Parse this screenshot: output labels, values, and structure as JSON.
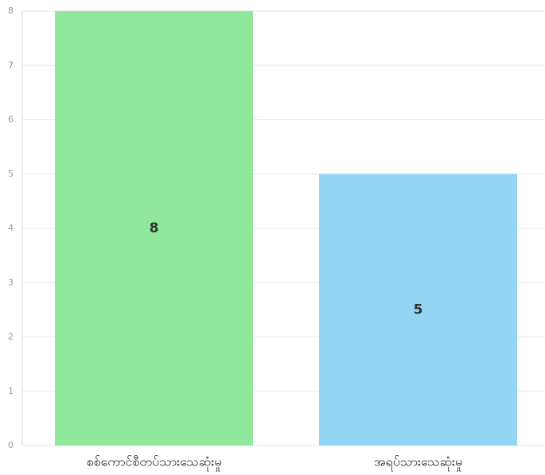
{
  "chart_data": {
    "type": "bar",
    "categories": [
      "စစ်ကောင်စီတပ်သားသေဆုံးမှု",
      "အရပ်သားသေဆုံးမှု"
    ],
    "values": [
      8,
      5
    ],
    "colors": [
      "#90e89c",
      "#94d5f4"
    ],
    "title": "",
    "xlabel": "",
    "ylabel": "",
    "ylim": [
      0,
      8
    ],
    "yticks": [
      0,
      1,
      2,
      3,
      4,
      5,
      6,
      7,
      8
    ],
    "grid": true,
    "legend": "none",
    "data_labels": [
      "8",
      "5"
    ]
  }
}
